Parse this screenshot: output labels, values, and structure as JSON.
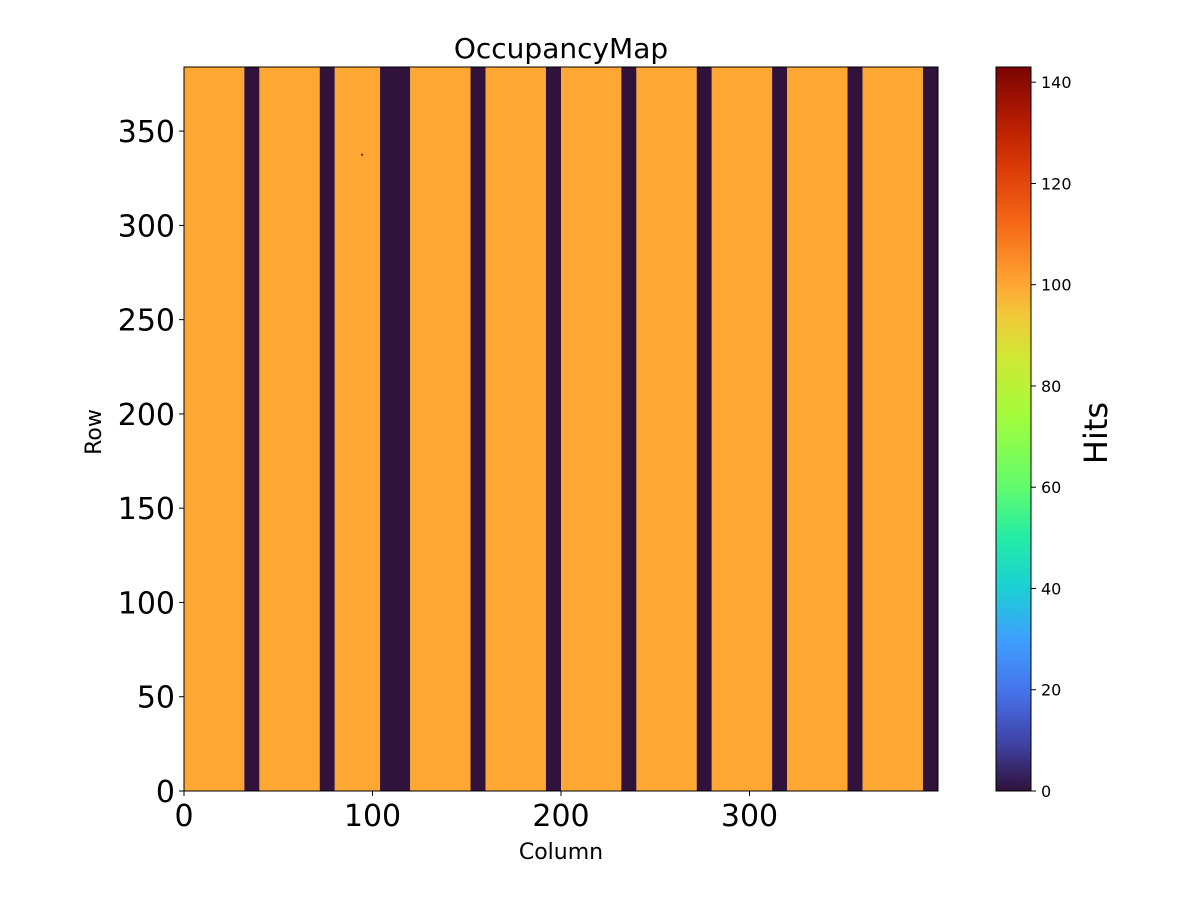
{
  "chart_data": {
    "type": "heatmap",
    "title": "OccupancyMap",
    "xlabel": "Column",
    "ylabel": "Row",
    "xlim": [
      0,
      400
    ],
    "ylim": [
      0,
      384
    ],
    "x_ticks": [
      0,
      100,
      200,
      300
    ],
    "y_ticks": [
      0,
      50,
      100,
      150,
      200,
      250,
      300,
      350
    ],
    "colormap": "turbo",
    "colorbar": {
      "label": "Hits",
      "range": [
        0,
        143
      ],
      "ticks": [
        0,
        20,
        40,
        60,
        80,
        100,
        120,
        140
      ]
    },
    "column_segments": [
      {
        "col_start": 0,
        "col_end": 32,
        "value": 100
      },
      {
        "col_start": 32,
        "col_end": 40,
        "value": 0
      },
      {
        "col_start": 40,
        "col_end": 72,
        "value": 100
      },
      {
        "col_start": 72,
        "col_end": 80,
        "value": 0
      },
      {
        "col_start": 80,
        "col_end": 104,
        "value": 100
      },
      {
        "col_start": 104,
        "col_end": 120,
        "value": 0
      },
      {
        "col_start": 120,
        "col_end": 152,
        "value": 100
      },
      {
        "col_start": 152,
        "col_end": 160,
        "value": 0
      },
      {
        "col_start": 160,
        "col_end": 192,
        "value": 100
      },
      {
        "col_start": 192,
        "col_end": 200,
        "value": 0
      },
      {
        "col_start": 200,
        "col_end": 232,
        "value": 100
      },
      {
        "col_start": 232,
        "col_end": 240,
        "value": 0
      },
      {
        "col_start": 240,
        "col_end": 272,
        "value": 100
      },
      {
        "col_start": 272,
        "col_end": 280,
        "value": 0
      },
      {
        "col_start": 280,
        "col_end": 312,
        "value": 100
      },
      {
        "col_start": 312,
        "col_end": 320,
        "value": 0
      },
      {
        "col_start": 320,
        "col_end": 352,
        "value": 100
      },
      {
        "col_start": 352,
        "col_end": 360,
        "value": 0
      },
      {
        "col_start": 360,
        "col_end": 392,
        "value": 100
      },
      {
        "col_start": 392,
        "col_end": 400,
        "value": 0
      }
    ],
    "hot_pixels": [
      {
        "col": 94,
        "row": 337,
        "value": 143
      }
    ]
  }
}
